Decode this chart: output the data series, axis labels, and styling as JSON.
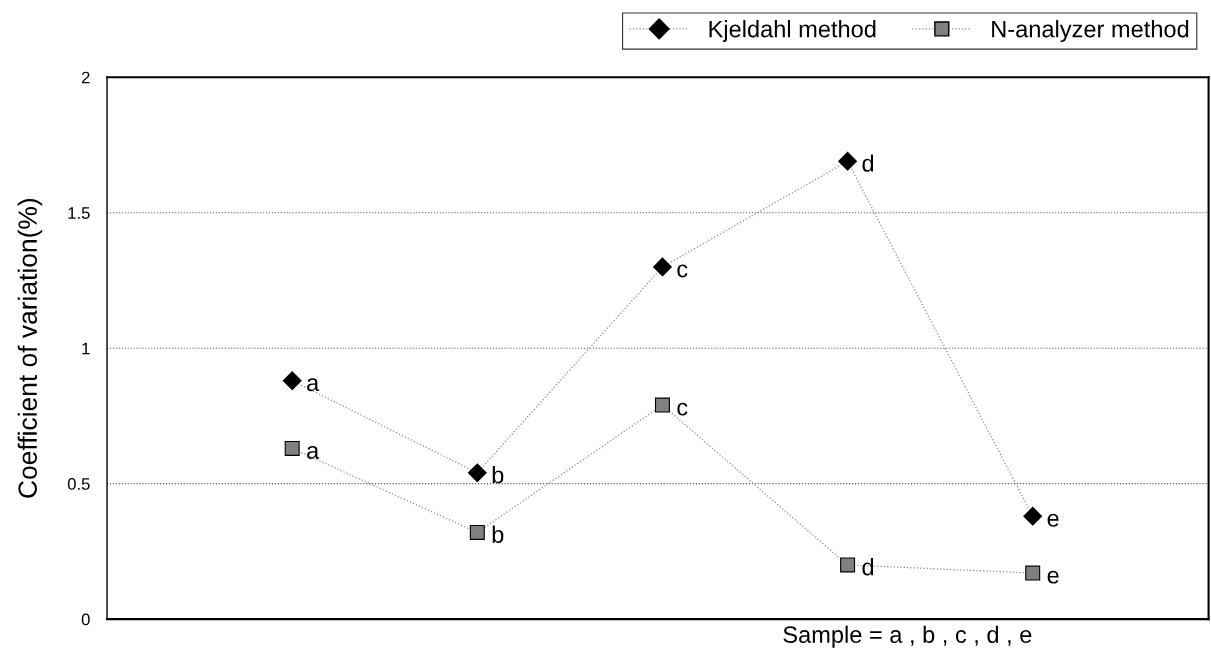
{
  "chart_data": {
    "type": "line",
    "ylabel": "Coefficient of variation(%)",
    "xlabel": "Sample = a , b , c , d , e",
    "categories": [
      null,
      null,
      null,
      null,
      null
    ],
    "series": [
      {
        "name": "Kjeldahl method",
        "color": "#000000",
        "marker": "diamond",
        "values": [
          0.88,
          0.54,
          1.3,
          1.69,
          0.38
        ],
        "value_labels": [
          "a",
          "b",
          "c",
          "d",
          "e"
        ]
      },
      {
        "name": "N-analyzer method",
        "color": "#808080",
        "marker": "square",
        "values": [
          0.63,
          0.32,
          0.79,
          0.2,
          0.17
        ],
        "value_labels": [
          "a",
          "b",
          "c",
          "d",
          "e"
        ]
      }
    ],
    "line_style": "dotted",
    "ylim": [
      0,
      2
    ],
    "yticks": [
      0,
      0.5,
      1,
      1.5,
      2
    ],
    "grid": "y",
    "legend": "top right"
  }
}
